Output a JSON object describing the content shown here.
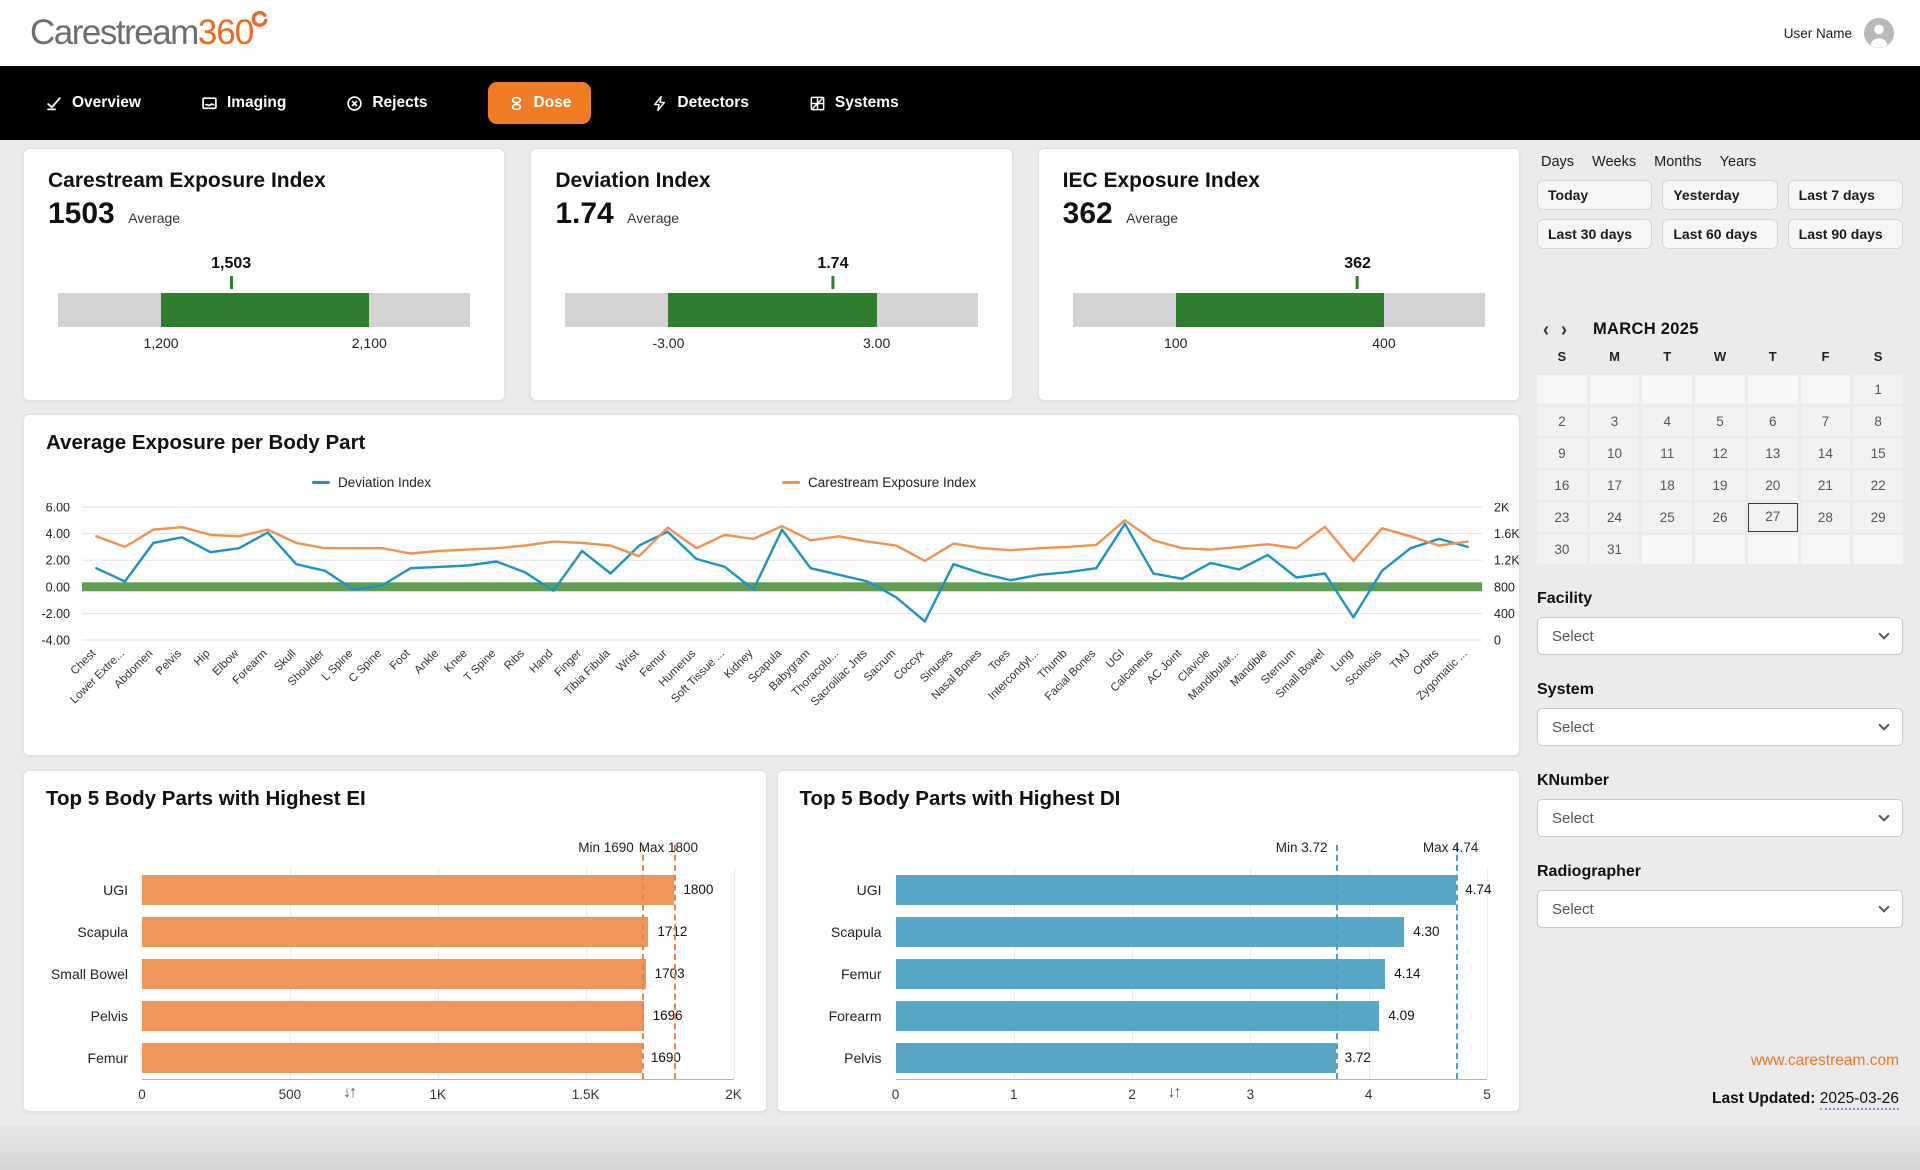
{
  "header": {
    "logo_main": "Carestream",
    "logo_suffix": "360",
    "user_name": "User Name"
  },
  "nav": {
    "items": [
      "Overview",
      "Imaging",
      "Rejects",
      "Dose",
      "Detectors",
      "Systems"
    ],
    "active_index": 3
  },
  "kpis": [
    {
      "title": "Carestream Exposure Index",
      "value": "1503",
      "value_label": "Average",
      "marker_label": "1,503",
      "marker_value": 1503,
      "range_min": 1200,
      "range_max": 2100,
      "range_min_label": "1,200",
      "range_max_label": "2,100"
    },
    {
      "title": "Deviation Index",
      "value": "1.74",
      "value_label": "Average",
      "marker_label": "1.74",
      "marker_value": 1.74,
      "range_min": -3,
      "range_max": 3,
      "range_min_label": "-3.00",
      "range_max_label": "3.00"
    },
    {
      "title": "IEC Exposure Index",
      "value": "362",
      "value_label": "Average",
      "marker_label": "362",
      "marker_value": 362,
      "range_min": 100,
      "range_max": 400,
      "range_min_label": "100",
      "range_max_label": "400"
    }
  ],
  "chart_data": [
    {
      "id": "average-exposure-per-body-part",
      "type": "line",
      "title": "Average Exposure per Body Part",
      "legend_position": "top",
      "grid": true,
      "categories": [
        "Chest",
        "Lower Extre...",
        "Abdomen",
        "Pelvis",
        "Hip",
        "Elbow",
        "Forearm",
        "Skull",
        "Shoulder",
        "L Spine",
        "C Spine",
        "Foot",
        "Ankle",
        "Knee",
        "T Spine",
        "Ribs",
        "Hand",
        "Finger",
        "Tibia Fibula",
        "Wrist",
        "Femur",
        "Humerus",
        "Soft Tissue ...",
        "Kidney",
        "Scapula",
        "Babygram",
        "Thoracolu...",
        "Sacroiliac Jnts",
        "Sacrum",
        "Coccyx",
        "Sinuses",
        "Nasal Bones",
        "Toes",
        "Intercondyl...",
        "Thumb",
        "Facial Bones",
        "UGI",
        "Calcaneus",
        "AC Joint",
        "Clavicle",
        "Mandibular...",
        "Mandible",
        "Sternum",
        "Small Bowel",
        "Lung",
        "Scoliosis",
        "TMJ",
        "Orbits",
        "Zygomatic ..."
      ],
      "series": [
        {
          "name": "Deviation Index",
          "axis": "left",
          "color": "#1d93c4",
          "values": [
            1.4,
            0.4,
            3.3,
            3.72,
            2.6,
            2.9,
            4.09,
            1.7,
            1.2,
            -0.2,
            0.1,
            1.4,
            1.5,
            1.6,
            1.9,
            1.1,
            -0.3,
            2.7,
            1.0,
            3.1,
            4.14,
            2.1,
            1.5,
            -0.2,
            4.3,
            1.4,
            0.9,
            0.4,
            -0.8,
            -2.6,
            1.7,
            1.0,
            0.5,
            0.9,
            1.1,
            1.4,
            4.74,
            1.0,
            0.6,
            1.8,
            1.3,
            2.4,
            0.7,
            1.0,
            -2.3,
            1.2,
            2.9,
            3.6,
            3.0
          ]
        },
        {
          "name": "Carestream Exposure Index",
          "axis": "right",
          "color": "#f2914e",
          "values": [
            1560,
            1400,
            1660,
            1696,
            1580,
            1560,
            1660,
            1460,
            1380,
            1380,
            1380,
            1300,
            1340,
            1360,
            1380,
            1420,
            1480,
            1460,
            1420,
            1260,
            1690,
            1380,
            1580,
            1520,
            1712,
            1500,
            1560,
            1480,
            1420,
            1190,
            1450,
            1380,
            1350,
            1380,
            1400,
            1430,
            1800,
            1500,
            1380,
            1360,
            1400,
            1440,
            1380,
            1703,
            1190,
            1680,
            1560,
            1420,
            1480
          ]
        }
      ],
      "left_axis": {
        "min": -4,
        "max": 6,
        "tick_labels": [
          "6.00",
          "4.00",
          "2.00",
          "0.00",
          "-2.00",
          "-4.00"
        ]
      },
      "right_axis": {
        "min": 0,
        "max": 2000,
        "tick_labels": [
          "2K",
          "1.6K",
          "1.2K",
          "800",
          "400",
          "0"
        ]
      },
      "target_band": {
        "value": 0,
        "color": "#5f9e53"
      }
    },
    {
      "id": "top5-ei",
      "type": "bar",
      "orientation": "horizontal",
      "title": "Top 5 Body Parts with Highest EI",
      "categories": [
        "UGI",
        "Scapula",
        "Small Bowel",
        "Pelvis",
        "Femur"
      ],
      "values": [
        1800,
        1712,
        1703,
        1696,
        1690
      ],
      "value_labels": [
        "1800",
        "1712",
        "1703",
        "1696",
        "1690"
      ],
      "bar_color": "#f0955c",
      "dash_color": "#ef8240",
      "xlim": [
        0,
        2000
      ],
      "x_ticks": [
        0,
        500,
        1000,
        1500,
        2000
      ],
      "x_tick_labels": [
        "0",
        "500",
        "1K",
        "1.5K",
        "2K"
      ],
      "min_line": {
        "label": "Min 1690",
        "value": 1690
      },
      "max_line": {
        "label": "Max 1800",
        "value": 1800
      },
      "sort_icon": "↓↑"
    },
    {
      "id": "top5-di",
      "type": "bar",
      "orientation": "horizontal",
      "title": "Top 5 Body Parts with Highest DI",
      "categories": [
        "UGI",
        "Scapula",
        "Femur",
        "Forearm",
        "Pelvis"
      ],
      "values": [
        4.74,
        4.3,
        4.14,
        4.09,
        3.72
      ],
      "value_labels": [
        "4.74",
        "4.30",
        "4.14",
        "4.09",
        "3.72"
      ],
      "bar_color": "#58a7c6",
      "dash_color": "#4ba0c6",
      "xlim": [
        0,
        5
      ],
      "x_ticks": [
        0,
        1,
        2,
        3,
        4,
        5
      ],
      "x_tick_labels": [
        "0",
        "1",
        "2",
        "3",
        "4",
        "5"
      ],
      "min_line": {
        "label": "Min 3.72",
        "value": 3.72
      },
      "max_line": {
        "label": "Max 4.74",
        "value": 4.74
      },
      "sort_icon": "↓↑"
    }
  ],
  "sidebar": {
    "range_tabs": [
      "Days",
      "Weeks",
      "Months",
      "Years"
    ],
    "quick_ranges": [
      "Today",
      "Yesterday",
      "Last 7 days",
      "Last 30 days",
      "Last 60 days",
      "Last 90 days"
    ],
    "calendar": {
      "title": "MARCH 2025",
      "prev": "‹",
      "next": "›",
      "weekdays": [
        "S",
        "M",
        "T",
        "W",
        "T",
        "F",
        "S"
      ],
      "weeks": [
        [
          "",
          "",
          "",
          "",
          "",
          "",
          "1"
        ],
        [
          "2",
          "3",
          "4",
          "5",
          "6",
          "7",
          "8"
        ],
        [
          "9",
          "10",
          "11",
          "12",
          "13",
          "14",
          "15"
        ],
        [
          "16",
          "17",
          "18",
          "19",
          "20",
          "21",
          "22"
        ],
        [
          "23",
          "24",
          "25",
          "26",
          "27",
          "28",
          "29"
        ],
        [
          "30",
          "31",
          "",
          "",
          "",
          "",
          ""
        ]
      ],
      "selected_day": "27"
    },
    "filters": [
      {
        "label": "Facility",
        "placeholder": "Select"
      },
      {
        "label": "System",
        "placeholder": "Select"
      },
      {
        "label": "KNumber",
        "placeholder": "Select"
      },
      {
        "label": "Radiographer",
        "placeholder": "Select"
      }
    ],
    "website_link": "www.carestream.com",
    "last_updated_label": "Last Updated:",
    "last_updated_value": "2025-03-26"
  },
  "colors": {
    "accent_orange": "#f07d26",
    "kpi_green": "#2d7f2f",
    "nav_bg": "#000000",
    "link_orange": "#e87722"
  }
}
